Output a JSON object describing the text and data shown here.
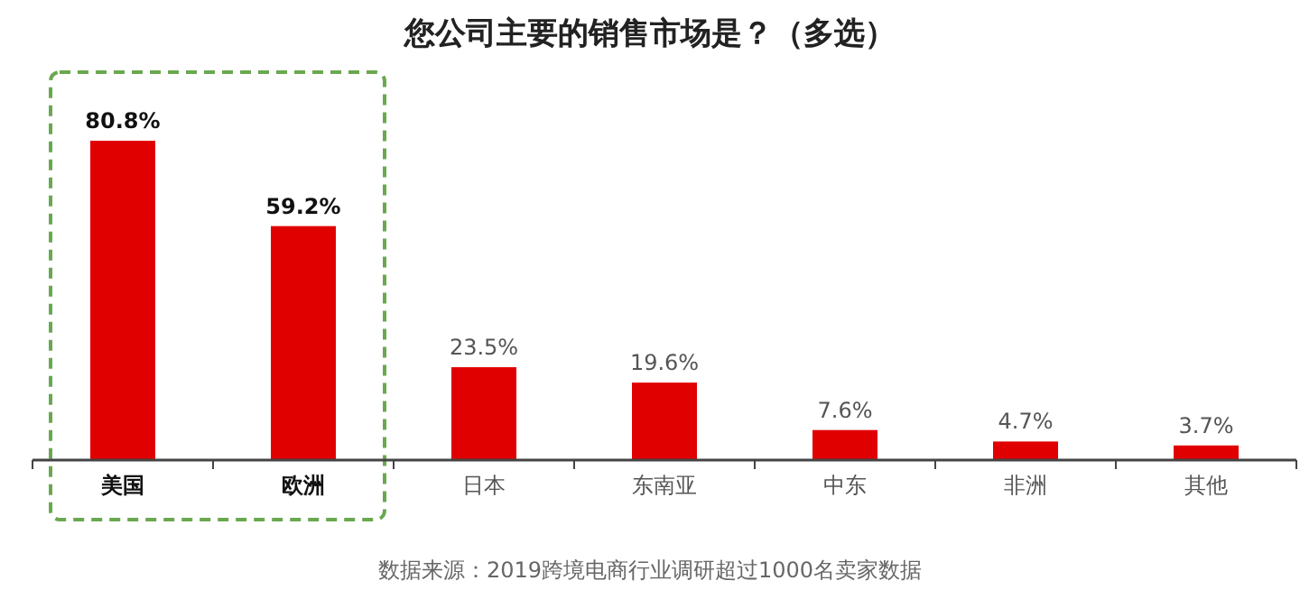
{
  "chart_data": {
    "type": "bar",
    "title": "您公司主要的销售市场是？（多选）",
    "categories": [
      "美国",
      "欧洲",
      "日本",
      "东南亚",
      "中东",
      "非洲",
      "其他"
    ],
    "values": [
      80.8,
      59.2,
      23.5,
      19.6,
      7.6,
      4.7,
      3.7
    ],
    "value_labels": [
      "80.8%",
      "59.2%",
      "23.5%",
      "19.6%",
      "7.6%",
      "4.7%",
      "3.7%"
    ],
    "color": "#e00000",
    "annotations": [
      "数据来源：2019跨境电商行业调研超过1000名卖家数据"
    ]
  }
}
